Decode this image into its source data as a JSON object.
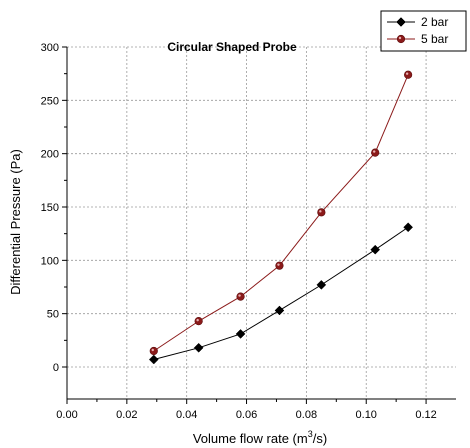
{
  "chart_data": {
    "type": "line",
    "title": "Circular Shaped Probe",
    "xlabel_main": "Volume flow rate (m",
    "xlabel_sup": "3",
    "xlabel_tail": "/s)",
    "ylabel": "Differential Pressure (Pa)",
    "xlim": [
      0.0,
      0.13
    ],
    "ylim": [
      -30,
      300
    ],
    "x_ticks": [
      0.0,
      0.02,
      0.04,
      0.06,
      0.08,
      0.1,
      0.12
    ],
    "x_tick_labels": [
      "0.00",
      "0.02",
      "0.04",
      "0.06",
      "0.08",
      "0.10",
      "0.12"
    ],
    "y_ticks": [
      0,
      50,
      100,
      150,
      200,
      250,
      300
    ],
    "y_tick_labels": [
      "0",
      "50",
      "100",
      "150",
      "200",
      "250",
      "300"
    ],
    "grid": true,
    "legend_position": "top-right",
    "series": [
      {
        "name": "2 bar",
        "color": "#000000",
        "marker": "diamond",
        "x": [
          0.029,
          0.044,
          0.058,
          0.071,
          0.085,
          0.103,
          0.114
        ],
        "y": [
          7,
          18,
          31,
          53,
          77,
          110,
          131
        ]
      },
      {
        "name": "5 bar",
        "color": "#8b1a1a",
        "marker": "circle",
        "x": [
          0.029,
          0.044,
          0.058,
          0.071,
          0.085,
          0.103,
          0.114
        ],
        "y": [
          15,
          43,
          66,
          95,
          145,
          201,
          274
        ]
      }
    ]
  }
}
